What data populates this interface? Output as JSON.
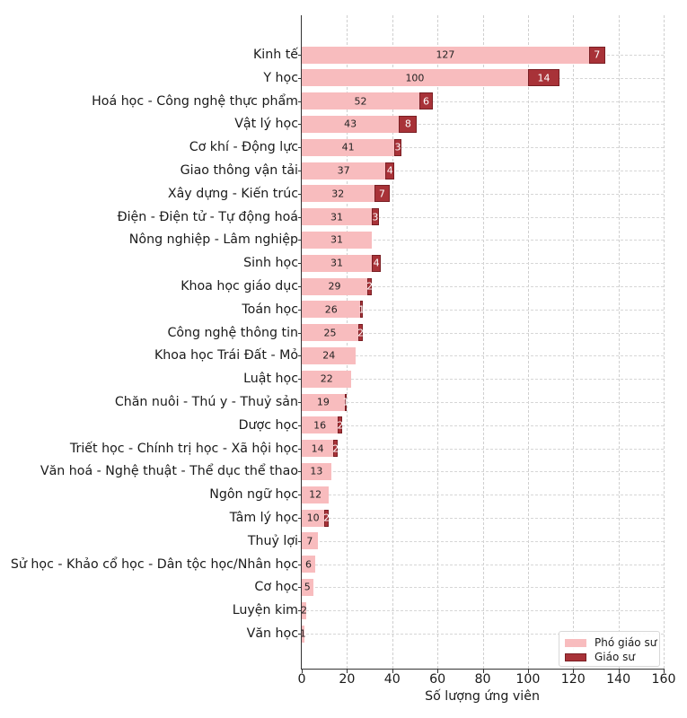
{
  "chart_data": {
    "type": "bar",
    "orientation": "horizontal",
    "stacked": true,
    "title": "",
    "xlabel": "Số lượng ứng viên",
    "ylabel": "",
    "xlim": [
      0,
      160
    ],
    "xticks": [
      0,
      20,
      40,
      60,
      80,
      100,
      120,
      140,
      160
    ],
    "grid": true,
    "legend_position": "lower right",
    "categories": [
      "Kinh tế",
      "Y học",
      "Hoá học - Công nghệ thực phẩm",
      "Vật lý học",
      "Cơ khí - Động lực",
      "Giao thông vận tải",
      "Xây dựng - Kiến trúc",
      "Điện - Điện tử - Tự động hoá",
      "Nông nghiệp - Lâm nghiệp",
      "Sinh học",
      "Khoa học giáo dục",
      "Toán học",
      "Công nghệ thông tin",
      "Khoa học Trái Đất - Mỏ",
      "Luật học",
      "Chăn nuôi - Thú y - Thuỷ sản",
      "Dược học",
      "Triết học - Chính trị học - Xã hội học",
      "Văn hoá - Nghệ thuật - Thể dục thể thao",
      "Ngôn ngữ học",
      "Tâm lý học",
      "Thuỷ lợi",
      "Sử học - Khảo cổ học - Dân tộc học/Nhân học",
      "Cơ học",
      "Luyện kim",
      "Văn học"
    ],
    "series": [
      {
        "name": "Phó giáo sư",
        "color": "#f8bcbe",
        "values": [
          127,
          100,
          52,
          43,
          41,
          37,
          32,
          31,
          31,
          31,
          29,
          26,
          25,
          24,
          22,
          19,
          16,
          14,
          13,
          12,
          10,
          7,
          6,
          5,
          2,
          1
        ]
      },
      {
        "name": "Giáo sư",
        "color": "#a83238",
        "values": [
          7,
          14,
          6,
          8,
          3,
          4,
          7,
          3,
          0,
          4,
          2,
          1,
          2,
          0,
          0,
          1,
          2,
          2,
          0,
          0,
          2,
          0,
          0,
          0,
          0,
          0
        ]
      }
    ]
  }
}
